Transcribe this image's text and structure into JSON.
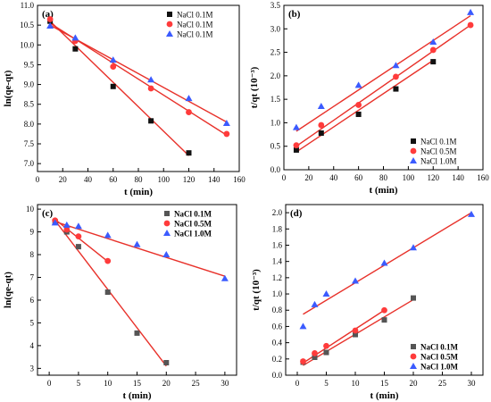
{
  "chart_data": [
    {
      "id": "a",
      "panel_label": "(a)",
      "type": "scatter",
      "xlabel": "t (min)",
      "ylabel": "ln(qe-qt)",
      "xlim": [
        0,
        160
      ],
      "ylim": [
        6.8,
        11.0
      ],
      "xticks": [
        0,
        20,
        40,
        60,
        80,
        100,
        120,
        140,
        160
      ],
      "yticks": [
        7.0,
        7.5,
        8.0,
        8.5,
        9.0,
        9.5,
        10.0,
        10.5,
        11.0
      ],
      "ytick_decimals": 1,
      "legend_position": "top-right",
      "label_weight": "normal",
      "series": [
        {
          "name": "NaCl 0.1M",
          "marker": "square",
          "color": "#111111",
          "x": [
            10,
            30,
            60,
            90,
            120
          ],
          "y": [
            10.6,
            9.9,
            8.95,
            8.08,
            7.27
          ],
          "fit": [
            [
              10,
              10.6
            ],
            [
              120,
              7.2
            ]
          ]
        },
        {
          "name": "NaCl 0.1M",
          "marker": "circle",
          "color": "#ff3b3b",
          "x": [
            10,
            30,
            60,
            90,
            120,
            150
          ],
          "y": [
            10.65,
            10.1,
            9.45,
            8.9,
            8.3,
            7.75
          ],
          "fit": [
            [
              10,
              10.55
            ],
            [
              150,
              7.72
            ]
          ]
        },
        {
          "name": "NaCl 0.1M",
          "marker": "triangle",
          "color": "#3b5bff",
          "x": [
            10,
            30,
            60,
            90,
            120,
            150
          ],
          "y": [
            10.48,
            10.18,
            9.62,
            9.12,
            8.65,
            8.02
          ],
          "fit": [
            [
              10,
              10.5
            ],
            [
              150,
              8.05
            ]
          ]
        }
      ]
    },
    {
      "id": "b",
      "panel_label": "(b)",
      "type": "scatter",
      "xlabel": "t (min)",
      "ylabel": "t/qt (10⁻³)",
      "xlim": [
        0,
        160
      ],
      "ylim": [
        0,
        3.5
      ],
      "xticks": [
        0,
        20,
        40,
        60,
        80,
        100,
        120,
        140,
        160
      ],
      "yticks": [
        0.0,
        0.5,
        1.0,
        1.5,
        2.0,
        2.5,
        3.0,
        3.5
      ],
      "ytick_decimals": 1,
      "legend_position": "bottom-right",
      "label_weight": "normal",
      "series": [
        {
          "name": "NaCl 0.1M",
          "marker": "square",
          "color": "#111111",
          "x": [
            10,
            30,
            60,
            90,
            120
          ],
          "y": [
            0.42,
            0.78,
            1.18,
            1.72,
            2.3
          ],
          "fit": [
            [
              10,
              0.38
            ],
            [
              120,
              2.33
            ]
          ]
        },
        {
          "name": "NaCl 0.5M",
          "marker": "circle",
          "color": "#ff3b3b",
          "x": [
            10,
            30,
            60,
            90,
            120,
            150
          ],
          "y": [
            0.52,
            0.95,
            1.38,
            1.98,
            2.55,
            3.08
          ],
          "fit": [
            [
              10,
              0.5
            ],
            [
              150,
              3.08
            ]
          ]
        },
        {
          "name": "NaCl 1.0M",
          "marker": "triangle",
          "color": "#3b5bff",
          "x": [
            10,
            30,
            60,
            90,
            120,
            150
          ],
          "y": [
            0.9,
            1.35,
            1.8,
            2.22,
            2.72,
            3.35
          ],
          "fit": [
            [
              10,
              0.82
            ],
            [
              150,
              3.28
            ]
          ]
        }
      ]
    },
    {
      "id": "c",
      "panel_label": "(c)",
      "type": "scatter",
      "xlabel": "t (min)",
      "ylabel": "ln(qe-qt)",
      "xlim": [
        -2,
        32
      ],
      "ylim": [
        2.7,
        10.2
      ],
      "xticks": [
        0,
        5,
        10,
        15,
        20,
        25,
        30
      ],
      "yticks": [
        3,
        4,
        5,
        6,
        7,
        8,
        9,
        10
      ],
      "ytick_decimals": 0,
      "legend_position": "top-right",
      "label_weight": "bold",
      "series": [
        {
          "name": "NaCl 0.1M",
          "marker": "square",
          "color": "#555555",
          "x": [
            1,
            3,
            5,
            10,
            15,
            20
          ],
          "y": [
            9.45,
            9.0,
            8.35,
            6.35,
            4.55,
            3.25
          ],
          "fit": [
            [
              1,
              9.5
            ],
            [
              20,
              3.1
            ]
          ]
        },
        {
          "name": "NaCl 0.5M",
          "marker": "circle",
          "color": "#ff3b3b",
          "x": [
            1,
            3,
            5,
            10
          ],
          "y": [
            9.5,
            9.1,
            8.8,
            7.72
          ],
          "fit": [
            [
              1,
              9.55
            ],
            [
              10,
              7.7
            ]
          ]
        },
        {
          "name": "NaCl 1.0M",
          "marker": "triangle",
          "color": "#3b5bff",
          "x": [
            1,
            3,
            5,
            10,
            15,
            20,
            30
          ],
          "y": [
            9.4,
            9.3,
            9.25,
            8.85,
            8.45,
            8.0,
            6.95
          ],
          "fit": [
            [
              1,
              9.45
            ],
            [
              30,
              7.05
            ]
          ]
        }
      ]
    },
    {
      "id": "d",
      "panel_label": "(d)",
      "type": "scatter",
      "xlabel": "t (min)",
      "ylabel": "t/qt (10⁻³)",
      "xlim": [
        -2,
        32
      ],
      "ylim": [
        0,
        2.1
      ],
      "xticks": [
        0,
        5,
        10,
        15,
        20,
        25,
        30
      ],
      "yticks": [
        0.0,
        0.2,
        0.4,
        0.6,
        0.8,
        1.0,
        1.2,
        1.4,
        1.6,
        1.8,
        2.0
      ],
      "ytick_decimals": 1,
      "legend_position": "bottom-right",
      "label_weight": "bold",
      "series": [
        {
          "name": "NaCl 0.1M",
          "marker": "square",
          "color": "#555555",
          "x": [
            1,
            3,
            5,
            10,
            15,
            20
          ],
          "y": [
            0.16,
            0.22,
            0.28,
            0.5,
            0.68,
            0.95
          ],
          "fit": [
            [
              1,
              0.12
            ],
            [
              20,
              0.93
            ]
          ]
        },
        {
          "name": "NaCl 0.5M",
          "marker": "circle",
          "color": "#ff3b3b",
          "x": [
            1,
            3,
            5,
            10,
            15
          ],
          "y": [
            0.17,
            0.27,
            0.36,
            0.55,
            0.8
          ],
          "fit": [
            [
              1,
              0.15
            ],
            [
              15,
              0.8
            ]
          ]
        },
        {
          "name": "NaCl 1.0M",
          "marker": "triangle",
          "color": "#3b5bff",
          "x": [
            1,
            3,
            5,
            10,
            15,
            20,
            30
          ],
          "y": [
            0.6,
            0.87,
            1.0,
            1.16,
            1.38,
            1.57,
            1.98
          ],
          "fit": [
            [
              1,
              0.75
            ],
            [
              30,
              2.0
            ]
          ]
        }
      ]
    }
  ]
}
